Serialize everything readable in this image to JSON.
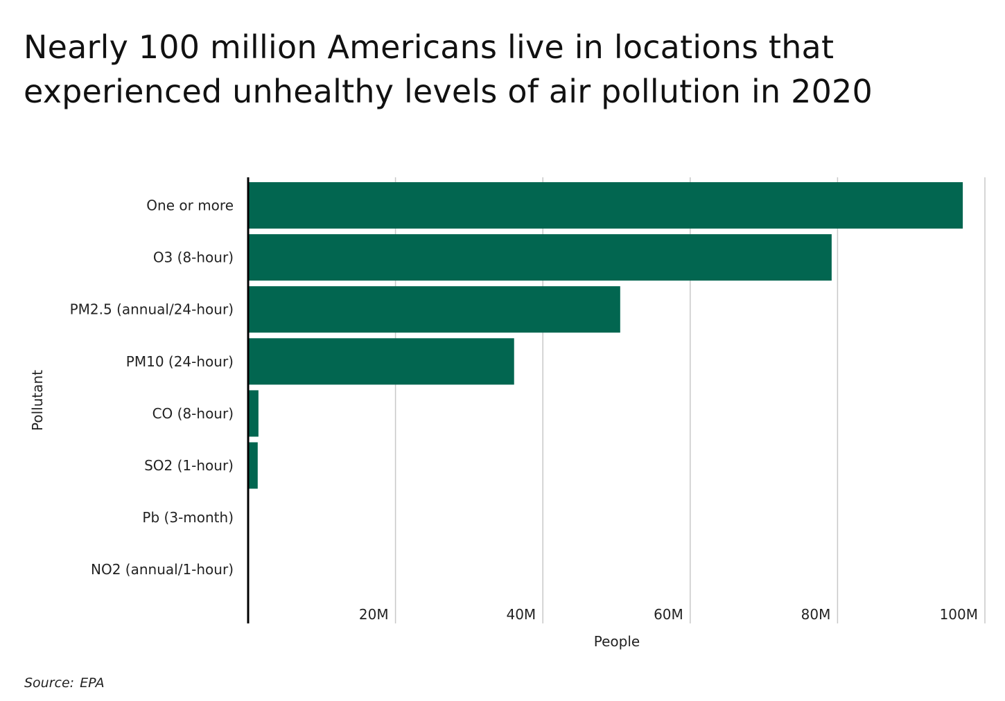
{
  "title_lines": [
    "Nearly 100 million Americans live in locations that",
    "experienced unhealthy levels of air pollution in 2020"
  ],
  "source": {
    "label": "Source:",
    "value": "EPA"
  },
  "colors": {
    "bar": "#026650",
    "grid": "#c8c8c8",
    "axis": "#000000",
    "text": "#222222"
  },
  "chart_data": {
    "type": "bar",
    "orientation": "horizontal",
    "title": "Nearly 100 million Americans live in locations that experienced unhealthy levels of air pollution in 2020",
    "xlabel": "People",
    "ylabel": "Pollutant",
    "categories": [
      "One or more",
      "O3 (8-hour)",
      "PM2.5 (annual/24-hour)",
      "PM10 (24-hour)",
      "CO (8-hour)",
      "SO2 (1-hour)",
      "Pb (3-month)",
      "NO2 (annual/1-hour)"
    ],
    "values": [
      97000000,
      79200000,
      50500000,
      36100000,
      1400000,
      1300000,
      0,
      0
    ],
    "xlim": [
      0,
      100000000
    ],
    "ticks": [
      20000000,
      40000000,
      60000000,
      80000000,
      100000000
    ],
    "tick_labels": [
      "20M",
      "40M",
      "60M",
      "80M",
      "100M"
    ],
    "grid": true,
    "legend": "none"
  }
}
